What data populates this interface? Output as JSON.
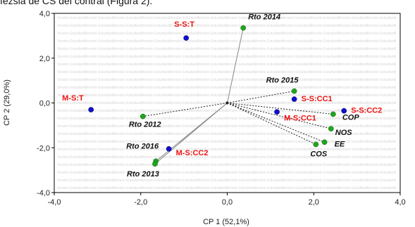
{
  "header_text": "fezsia de CS del contrál (Figura 2).",
  "chart_data": {
    "type": "scatter",
    "xlabel": "CP 1 (52,1%)",
    "ylabel": "CP 2 (29,0%)",
    "xlim": [
      -4.0,
      4.0
    ],
    "ylim": [
      -4.0,
      4.0
    ],
    "x_ticks": [
      "-4,0",
      "-2,0",
      "0,0",
      "2,0",
      "4,0"
    ],
    "y_ticks": [
      "-4,0",
      "-2,0",
      "0,0",
      "2,0",
      "4,0"
    ],
    "grid": false,
    "watermark_text": "Versión Estudiantil",
    "colors": {
      "green_points": "#1fa61f",
      "blue_points": "#1010cc",
      "red_labels": "#e11111"
    },
    "green_points": [
      {
        "label": "Rto 2014",
        "x": 0.37,
        "y": 3.35
      },
      {
        "label": "Rto 2015",
        "x": 1.55,
        "y": 0.53
      },
      {
        "label": "Rto 2012",
        "x": -1.95,
        "y": -0.6
      },
      {
        "label": "Rto 2016",
        "x": -1.65,
        "y": -2.6
      },
      {
        "label": "Rto 2013",
        "x": -1.67,
        "y": -2.72
      },
      {
        "label": "COP",
        "x": 2.45,
        "y": -0.5
      },
      {
        "label": "NOS",
        "x": 2.4,
        "y": -1.15
      },
      {
        "label": "EE",
        "x": 2.25,
        "y": -1.75
      },
      {
        "label": "COS",
        "x": 2.05,
        "y": -1.85
      }
    ],
    "blue_points": [
      {
        "label": "S-S:T",
        "x": -0.95,
        "y": 2.9
      },
      {
        "label": "M-S:T",
        "x": -3.15,
        "y": -0.3
      },
      {
        "label": "S-S:CC1",
        "x": 1.55,
        "y": 0.17
      },
      {
        "label": "M-S:CC1",
        "x": 1.15,
        "y": -0.4
      },
      {
        "label": "S-S:CC2",
        "x": 2.7,
        "y": -0.35
      },
      {
        "label": "M-S:CC2",
        "x": -1.35,
        "y": -2.05
      }
    ]
  }
}
